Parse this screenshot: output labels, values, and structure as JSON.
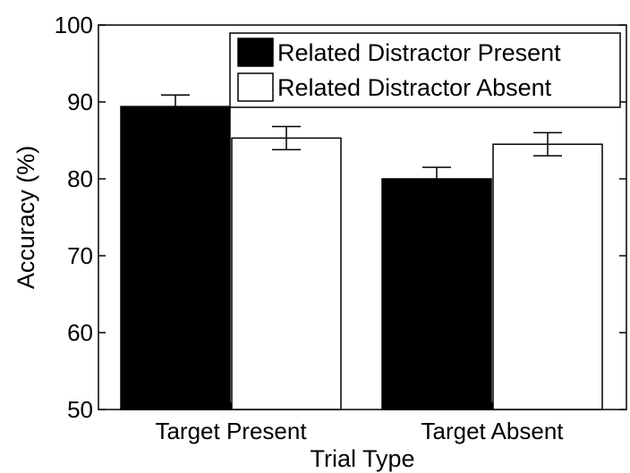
{
  "chart_data": {
    "type": "bar",
    "categories": [
      "Target Present",
      "Target Absent"
    ],
    "series": [
      {
        "name": "Related Distractor Present",
        "color": "#000000",
        "values": [
          89.4,
          80.0
        ],
        "errors": [
          1.5,
          1.5
        ]
      },
      {
        "name": "Related Distractor Absent",
        "color": "#ffffff",
        "values": [
          85.3,
          84.5
        ],
        "errors": [
          1.5,
          1.5
        ]
      }
    ],
    "xlabel": "Trial Type",
    "ylabel": "Accuracy (%)",
    "ylim": [
      50,
      100
    ],
    "yticks": [
      50,
      60,
      70,
      80,
      90,
      100
    ],
    "grid": false,
    "legend_position": "top-right"
  }
}
